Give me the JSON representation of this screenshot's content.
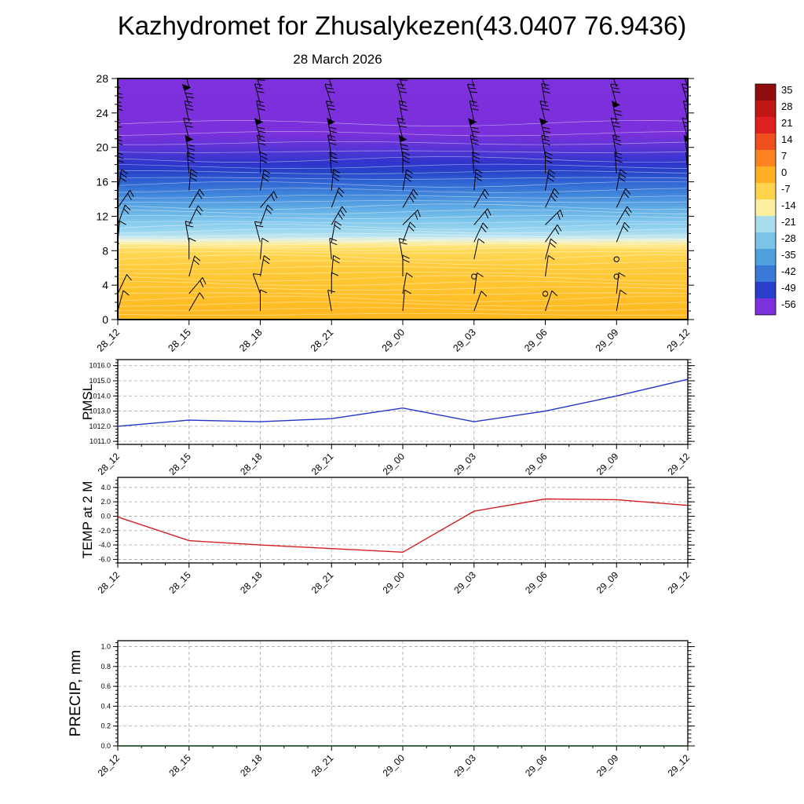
{
  "title": "Kazhydromet for Zhusalykezen(43.0407 76.9436)",
  "subtitle": "28 March 2026",
  "time_labels": [
    "28_12",
    "28_15",
    "28_18",
    "28_21",
    "29_00",
    "29_03",
    "29_06",
    "29_09",
    "29_12"
  ],
  "panels": {
    "pmsl": {
      "label": "PMSL"
    },
    "temp": {
      "label": "TEMP at 2 M"
    },
    "precip": {
      "label": "PRECIP, mm"
    }
  },
  "colors": {
    "pmsl_line": "#2233cc",
    "temp_line": "#d42020",
    "precip_line": "#1c4f1c",
    "grid": "#a8a8a8",
    "frame": "#000000"
  },
  "chart_data": [
    {
      "type": "heatmap",
      "name": "temperature-height-cross-section",
      "title": "28 March 2026",
      "x_categories": [
        "28_12",
        "28_15",
        "28_18",
        "28_21",
        "29_00",
        "29_03",
        "29_06",
        "29_09",
        "29_12"
      ],
      "y_ticks": [
        0,
        4,
        8,
        12,
        16,
        20,
        24,
        28
      ],
      "ylim": [
        0,
        28
      ],
      "units": "degC",
      "colorbar_labels": [
        "35",
        "28",
        "21",
        "14",
        "7",
        "0",
        "-7",
        "-14",
        "-21",
        "-28",
        "-35",
        "-42",
        "-49",
        "-56"
      ],
      "colorbar_colors": [
        "#8f0d0d",
        "#c01616",
        "#e02020",
        "#ef4f1d",
        "#fb8420",
        "#ffb121",
        "#ffd44c",
        "#fdeea0",
        "#aadcee",
        "#7cc3e8",
        "#51a0de",
        "#3a7ad6",
        "#2a3ecc",
        "#7d31dd"
      ],
      "fill_stops_km_color": [
        [
          28,
          "#7d31dd"
        ],
        [
          21.5,
          "#7a30da"
        ],
        [
          20.3,
          "#6233d8"
        ],
        [
          19.3,
          "#4a36d4"
        ],
        [
          18.2,
          "#3134cc"
        ],
        [
          17.2,
          "#2743c8"
        ],
        [
          16.2,
          "#2e5ed2"
        ],
        [
          14.6,
          "#3f85da"
        ],
        [
          13,
          "#5fabe4"
        ],
        [
          11.5,
          "#7fc6ec"
        ],
        [
          10.3,
          "#9cd7ef"
        ],
        [
          9.6,
          "#c2e6f1"
        ],
        [
          9.15,
          "#eef2d4"
        ],
        [
          8.7,
          "#ffea8e"
        ],
        [
          8,
          "#ffd957"
        ],
        [
          6,
          "#ffcb3a"
        ],
        [
          3,
          "#ffc12b"
        ],
        [
          0,
          "#ffb71f"
        ]
      ],
      "contour_levels_km": [
        0.6,
        1.2,
        1.8,
        2.4,
        3,
        3.6,
        4.2,
        4.8,
        5.4,
        6,
        6.6,
        7.2,
        7.8,
        8.2,
        8.6,
        9,
        9.4,
        9.8,
        10.3,
        10.8,
        11.3,
        11.9,
        12.5,
        13.1,
        13.7,
        14.3,
        15,
        15.7,
        16.4,
        17.1,
        17.8,
        18.6,
        19.5,
        20.5,
        21.6,
        22.8
      ],
      "wind_barbs": {
        "heights_km": [
          1,
          3,
          5,
          7,
          9,
          11,
          13,
          15,
          17,
          19,
          21,
          23,
          25,
          27
        ],
        "columns": [
          [
            [
              15,
              1
            ],
            [
              25,
              1
            ],
            [
              -35,
              2
            ],
            [
              -20,
              2
            ],
            [
              5,
              1
            ],
            [
              20,
              2
            ],
            [
              35,
              2
            ],
            [
              10,
              3
            ],
            [
              -5,
              3
            ],
            [
              -10,
              3
            ],
            [
              -15,
              3
            ],
            [
              -10,
              3
            ],
            [
              -15,
              4
            ],
            [
              -20,
              3
            ]
          ],
          [
            [
              30,
              1
            ],
            [
              40,
              2
            ],
            [
              15,
              2
            ],
            [
              0,
              1
            ],
            [
              -10,
              2
            ],
            [
              25,
              2
            ],
            [
              30,
              2
            ],
            [
              5,
              3
            ],
            [
              -5,
              3
            ],
            [
              -10,
              4
            ],
            [
              -15,
              3
            ],
            [
              -12,
              3
            ],
            [
              -18,
              4
            ],
            [
              -15,
              3
            ]
          ],
          [
            [
              0,
              1
            ],
            [
              -20,
              1
            ],
            [
              10,
              2
            ],
            [
              5,
              1
            ],
            [
              -15,
              2
            ],
            [
              20,
              2
            ],
            [
              40,
              2
            ],
            [
              10,
              3
            ],
            [
              0,
              3
            ],
            [
              -8,
              3
            ],
            [
              -15,
              4
            ],
            [
              -10,
              3
            ],
            [
              -15,
              3
            ],
            [
              -20,
              4
            ]
          ],
          [
            [
              -10,
              1
            ],
            [
              0,
              1
            ],
            [
              5,
              2
            ],
            [
              -5,
              2
            ],
            [
              10,
              2
            ],
            [
              30,
              3
            ],
            [
              20,
              2
            ],
            [
              5,
              3
            ],
            [
              -5,
              3
            ],
            [
              -10,
              3
            ],
            [
              -12,
              4
            ],
            [
              -15,
              3
            ],
            [
              -18,
              3
            ],
            [
              -15,
              3
            ]
          ],
          [
            [
              5,
              1
            ],
            [
              10,
              1
            ],
            [
              0,
              2
            ],
            [
              -10,
              2
            ],
            [
              20,
              2
            ],
            [
              45,
              2
            ],
            [
              30,
              3
            ],
            [
              10,
              3
            ],
            [
              0,
              3
            ],
            [
              -10,
              4
            ],
            [
              -15,
              3
            ],
            [
              -10,
              3
            ],
            [
              -15,
              3
            ],
            [
              -20,
              4
            ]
          ],
          [
            [
              20,
              1
            ],
            [
              8,
              1
            ],
            [
              0,
              0
            ],
            [
              12,
              1
            ],
            [
              25,
              2
            ],
            [
              40,
              2
            ],
            [
              30,
              2
            ],
            [
              5,
              3
            ],
            [
              -5,
              3
            ],
            [
              -10,
              3
            ],
            [
              -15,
              4
            ],
            [
              -12,
              3
            ],
            [
              -18,
              3
            ],
            [
              -15,
              3
            ]
          ],
          [
            [
              18,
              1
            ],
            [
              0,
              0
            ],
            [
              8,
              1
            ],
            [
              15,
              2
            ],
            [
              35,
              2
            ],
            [
              45,
              2
            ],
            [
              25,
              3
            ],
            [
              10,
              3
            ],
            [
              0,
              3
            ],
            [
              -10,
              3
            ],
            [
              -15,
              4
            ],
            [
              -14,
              3
            ],
            [
              -10,
              3
            ],
            [
              -18,
              3
            ]
          ],
          [
            [
              10,
              1
            ],
            [
              6,
              1
            ],
            [
              0,
              0
            ],
            [
              0,
              0
            ],
            [
              22,
              2
            ],
            [
              30,
              2
            ],
            [
              25,
              2
            ],
            [
              10,
              3
            ],
            [
              -5,
              3
            ],
            [
              -10,
              3
            ],
            [
              -15,
              3
            ],
            [
              -12,
              4
            ],
            [
              -16,
              3
            ],
            [
              -20,
              3
            ]
          ],
          [
            [
              6,
              1
            ],
            [
              15,
              1
            ],
            [
              10,
              2
            ],
            [
              5,
              2
            ],
            [
              25,
              2
            ],
            [
              35,
              2
            ],
            [
              20,
              3
            ],
            [
              5,
              3
            ],
            [
              -5,
              3
            ],
            [
              -10,
              4
            ],
            [
              -15,
              3
            ],
            [
              -12,
              3
            ],
            [
              -16,
              3
            ],
            [
              -20,
              3
            ]
          ]
        ]
      }
    },
    {
      "type": "line",
      "name": "PMSL",
      "color": "#2233cc",
      "x_categories": [
        "28_12",
        "28_15",
        "28_18",
        "28_21",
        "29_00",
        "29_03",
        "29_06",
        "29_09",
        "29_12"
      ],
      "values": [
        1012.0,
        1012.4,
        1012.3,
        1012.5,
        1013.2,
        1012.3,
        1013.0,
        1014.0,
        1015.1
      ],
      "y_tick_labels": [
        "1011.0",
        "1012.0",
        "1013.0",
        "1014.0",
        "1015.0",
        "1016.0"
      ],
      "ylim": [
        1010.8,
        1016.4
      ],
      "minor_step": 0.2,
      "grid": true
    },
    {
      "type": "line",
      "name": "TEMP at 2 M",
      "color": "#d42020",
      "x_categories": [
        "28_12",
        "28_15",
        "28_18",
        "28_21",
        "29_00",
        "29_03",
        "29_06",
        "29_09",
        "29_12"
      ],
      "values": [
        -0.1,
        -3.4,
        -4.0,
        -4.5,
        -5.0,
        0.7,
        2.4,
        2.3,
        1.5
      ],
      "y_tick_labels": [
        "-6.0",
        "-4.0",
        "-2.0",
        "0.0",
        "2.0",
        "4.0"
      ],
      "ylim": [
        -6.5,
        5.4
      ],
      "minor_step": 0.5,
      "grid": true
    },
    {
      "type": "line",
      "name": "PRECIP, mm",
      "color": "#1c4f1c",
      "x_categories": [
        "28_12",
        "28_15",
        "28_18",
        "28_21",
        "29_00",
        "29_03",
        "29_06",
        "29_09",
        "29_12"
      ],
      "values": [
        0,
        0,
        0,
        0,
        0,
        0,
        0,
        0,
        0
      ],
      "y_tick_labels": [
        "0.0",
        "0.2",
        "0.4",
        "0.6",
        "0.8",
        "1.0"
      ],
      "ylim": [
        0,
        1.06
      ],
      "minor_step": 0.04,
      "grid": true
    }
  ]
}
